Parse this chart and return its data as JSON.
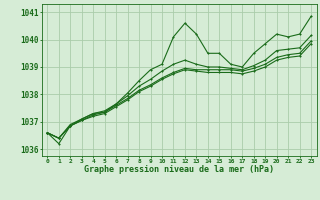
{
  "title": "Graphe pression niveau de la mer (hPa)",
  "background_color": "#d6ecd6",
  "grid_color": "#aaccaa",
  "line_color": "#1a6b1a",
  "x_ticks": [
    0,
    1,
    2,
    3,
    4,
    5,
    6,
    7,
    8,
    9,
    10,
    11,
    12,
    13,
    14,
    15,
    16,
    17,
    18,
    19,
    20,
    21,
    22,
    23
  ],
  "ylim": [
    1035.75,
    1041.3
  ],
  "y_ticks": [
    1036,
    1037,
    1038,
    1039,
    1040,
    1041
  ],
  "series": [
    [
      1036.6,
      1036.2,
      1036.85,
      1037.1,
      1037.3,
      1037.35,
      1037.65,
      1038.05,
      1038.5,
      1038.9,
      1039.1,
      1040.1,
      1040.6,
      1040.2,
      1039.5,
      1039.5,
      1039.1,
      1039.0,
      1039.5,
      1039.85,
      1040.2,
      1040.1,
      1040.2,
      1040.85
    ],
    [
      1036.6,
      1036.4,
      1036.9,
      1037.1,
      1037.3,
      1037.4,
      1037.65,
      1037.95,
      1038.3,
      1038.55,
      1038.85,
      1039.1,
      1039.25,
      1039.1,
      1039.0,
      1039.0,
      1038.95,
      1038.9,
      1039.05,
      1039.25,
      1039.6,
      1039.65,
      1039.7,
      1040.15
    ],
    [
      1036.6,
      1036.4,
      1036.85,
      1037.05,
      1037.25,
      1037.35,
      1037.6,
      1037.85,
      1038.15,
      1038.35,
      1038.6,
      1038.8,
      1038.95,
      1038.9,
      1038.9,
      1038.9,
      1038.9,
      1038.85,
      1038.95,
      1039.1,
      1039.35,
      1039.45,
      1039.5,
      1039.95
    ],
    [
      1036.6,
      1036.4,
      1036.85,
      1037.05,
      1037.2,
      1037.3,
      1037.55,
      1037.8,
      1038.1,
      1038.3,
      1038.55,
      1038.75,
      1038.9,
      1038.85,
      1038.8,
      1038.8,
      1038.8,
      1038.75,
      1038.85,
      1039.0,
      1039.25,
      1039.35,
      1039.4,
      1039.85
    ]
  ],
  "marker_size": 2.0,
  "line_width": 0.8
}
